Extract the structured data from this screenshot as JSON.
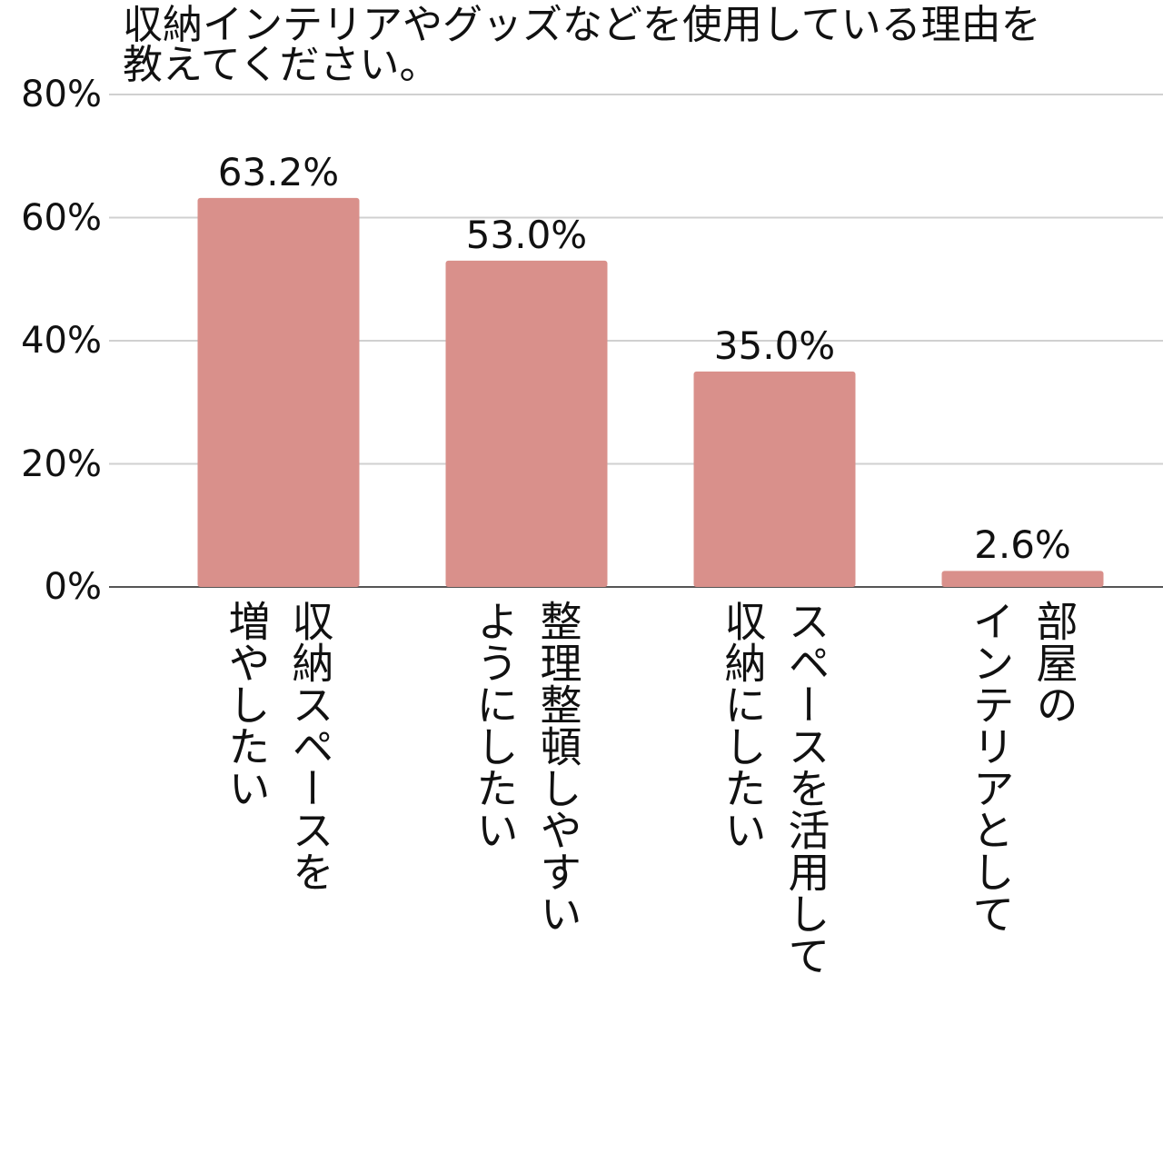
{
  "chart_data": {
    "type": "bar",
    "title": "収納インテリアやグッズなどを使用している理由を\n教えてください。",
    "categories": [
      "収納スペースを\n増やしたい",
      "整理整頓しやすい\nようにしたい",
      "スペースを活用して\n収納にしたい",
      "部屋の\nインテリアとして"
    ],
    "values": [
      63.2,
      53.0,
      35.0,
      2.6
    ],
    "value_labels": [
      "63.2%",
      "53.0%",
      "35.0%",
      "2.6%"
    ],
    "color": "#d9908b",
    "ylim": [
      0,
      80
    ],
    "yticks": [
      {
        "value": 0,
        "label": "0%"
      },
      {
        "value": 20,
        "label": "20%"
      },
      {
        "value": 40,
        "label": "40%"
      },
      {
        "value": 60,
        "label": "60%"
      },
      {
        "value": 80,
        "label": "80%"
      }
    ],
    "grid": true
  }
}
